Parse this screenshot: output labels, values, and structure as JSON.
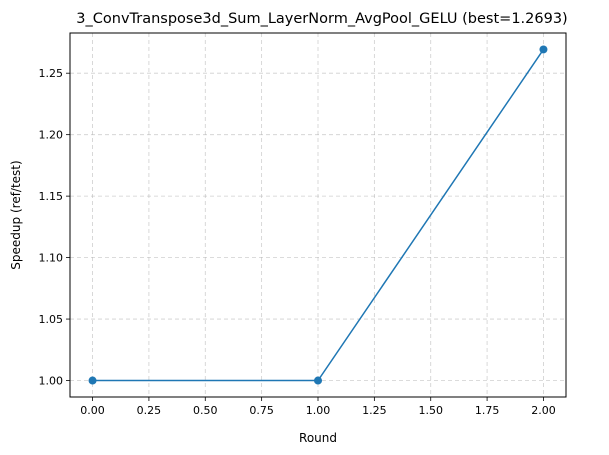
{
  "chart_data": {
    "type": "line",
    "title": "3_ConvTranspose3d_Sum_LayerNorm_AvgPool_GELU (best=1.2693)",
    "xlabel": "Round",
    "ylabel": "Speedup (ref/test)",
    "x": [
      0,
      1,
      2
    ],
    "series": [
      {
        "values": [
          1.0,
          1.0,
          1.2693
        ]
      }
    ],
    "xlim": [
      -0.1,
      2.1
    ],
    "ylim": [
      0.9866,
      1.2827
    ],
    "xticks": [
      0.0,
      0.25,
      0.5,
      0.75,
      1.0,
      1.25,
      1.5,
      1.75,
      2.0
    ],
    "xtick_labels": [
      "0.00",
      "0.25",
      "0.50",
      "0.75",
      "1.00",
      "1.25",
      "1.50",
      "1.75",
      "2.00"
    ],
    "yticks": [
      1.0,
      1.05,
      1.1,
      1.15,
      1.2,
      1.25
    ],
    "ytick_labels": [
      "1.00",
      "1.05",
      "1.10",
      "1.15",
      "1.20",
      "1.25"
    ],
    "grid": true,
    "line_color": "#1f77b4",
    "marker": "circle"
  }
}
